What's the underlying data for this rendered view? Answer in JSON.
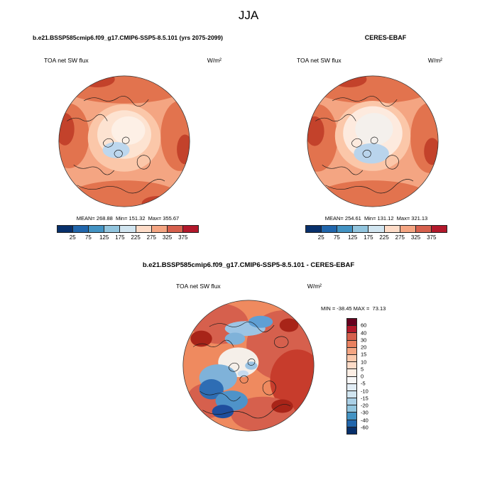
{
  "page_title": "JJA",
  "panels": {
    "model": {
      "title": "b.e21.BSSP585cmip6.f09_g17.CMIP6-SSP5-8.5.101 (yrs 2075-2099)",
      "var_label": "TOA net SW flux",
      "units": "W/m²",
      "stats": "MEAN= 268.88  Min= 151.32  Max= 355.67"
    },
    "obs": {
      "title": "CERES-EBAF",
      "var_label": "TOA net SW flux",
      "units": "W/m²",
      "stats": "MEAN= 254.61  Min= 131.12  Max= 321.13"
    },
    "diff": {
      "title": "b.e21.BSSP585cmip6.f09_g17.CMIP6-SSP5-8.5.101 - CERES-EBAF",
      "var_label": "TOA net SW flux",
      "units": "W/m²",
      "stats": "MIN = -38.45 MAX =  73.13"
    }
  },
  "colorbars": {
    "flux": {
      "ticks": [
        25,
        75,
        125,
        175,
        225,
        275,
        325,
        375
      ],
      "colors": [
        "#08306b",
        "#2166ac",
        "#4393c3",
        "#92c5de",
        "#d1e5f0",
        "#fddbc7",
        "#f4a582",
        "#d6604d",
        "#b2182b"
      ]
    },
    "diff": {
      "ticks": [
        60,
        40,
        30,
        20,
        15,
        10,
        5,
        0,
        -5,
        -10,
        -15,
        -20,
        -30,
        -40,
        -60
      ],
      "colors": [
        "#67001f",
        "#b2182b",
        "#d6604d",
        "#e98160",
        "#f4a582",
        "#fbc9ac",
        "#fddbc7",
        "#fdeee4",
        "#f7f7f7",
        "#e2edf5",
        "#d1e5f0",
        "#abd0e6",
        "#92c5de",
        "#4393c3",
        "#2166ac",
        "#08306b"
      ]
    }
  },
  "chart_data": [
    {
      "type": "heatmap",
      "projection": "polar-stereographic-north",
      "season": "JJA",
      "title": "b.e21.BSSP585cmip6.f09_g17.CMIP6-SSP5-8.5.101 (yrs 2075-2099)",
      "variable": "TOA net SW flux",
      "units": "W/m²",
      "stats": {
        "mean": 268.88,
        "min": 151.32,
        "max": 355.67
      },
      "colorbar_ticks": [
        25,
        75,
        125,
        175,
        225,
        275,
        325,
        375
      ],
      "colorbar_orientation": "horizontal"
    },
    {
      "type": "heatmap",
      "projection": "polar-stereographic-north",
      "season": "JJA",
      "title": "CERES-EBAF",
      "variable": "TOA net SW flux",
      "units": "W/m²",
      "stats": {
        "mean": 254.61,
        "min": 131.12,
        "max": 321.13
      },
      "colorbar_ticks": [
        25,
        75,
        125,
        175,
        225,
        275,
        325,
        375
      ],
      "colorbar_orientation": "horizontal"
    },
    {
      "type": "heatmap",
      "projection": "polar-stereographic-north",
      "season": "JJA",
      "title": "b.e21.BSSP585cmip6.f09_g17.CMIP6-SSP5-8.5.101 - CERES-EBAF",
      "variable": "TOA net SW flux",
      "units": "W/m²",
      "stats": {
        "min": -38.45,
        "max": 73.13
      },
      "colorbar_ticks": [
        60,
        40,
        30,
        20,
        15,
        10,
        5,
        0,
        -5,
        -10,
        -15,
        -20,
        -30,
        -40,
        -60
      ],
      "colorbar_orientation": "vertical"
    }
  ]
}
